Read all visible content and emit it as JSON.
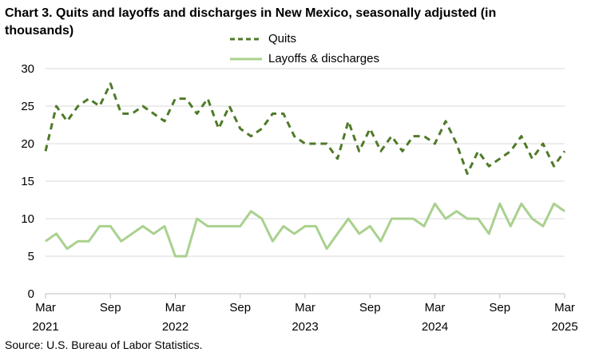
{
  "title": "Chart 3. Quits and layoffs and discharges in New Mexico, seasonally adjusted (in thousands)",
  "source": "Source: U.S. Bureau of Labor Statistics.",
  "colors": {
    "quits": "#4f7a28",
    "layoffs": "#a9d18e",
    "gridline": "#d9d9d9",
    "axis": "#000000"
  },
  "legend": [
    {
      "label": "Quits",
      "style": "dashed",
      "color": "#4f7a28"
    },
    {
      "label": "Layoffs & discharges",
      "style": "solid",
      "color": "#a9d18e"
    }
  ],
  "chart_data": {
    "type": "line",
    "title": "Chart 3. Quits and layoffs and discharges in New Mexico, seasonally adjusted (in thousands)",
    "xlabel": "",
    "ylabel": "",
    "ylim": [
      0,
      30
    ],
    "yticks": [
      0,
      5,
      10,
      15,
      20,
      25,
      30
    ],
    "grid": true,
    "legend_position": "top",
    "x_start": "2021-03",
    "x_end": "2025-03",
    "x_ticks": [
      {
        "month": "Mar",
        "year": "2021",
        "index": 0
      },
      {
        "month": "Sep",
        "year": "",
        "index": 6
      },
      {
        "month": "Mar",
        "year": "2022",
        "index": 12
      },
      {
        "month": "Sep",
        "year": "",
        "index": 18
      },
      {
        "month": "Mar",
        "year": "2023",
        "index": 24
      },
      {
        "month": "Sep",
        "year": "",
        "index": 30
      },
      {
        "month": "Mar",
        "year": "2024",
        "index": 36
      },
      {
        "month": "Sep",
        "year": "",
        "index": 42
      },
      {
        "month": "Mar",
        "year": "2025",
        "index": 48
      }
    ],
    "series": [
      {
        "name": "Quits",
        "style": "dashed",
        "values": [
          19,
          25,
          23,
          25,
          26,
          25,
          28,
          24,
          24,
          25,
          24,
          23,
          26,
          26,
          24,
          26,
          22,
          25,
          22,
          21,
          22,
          24,
          24,
          21,
          20,
          20,
          20,
          18,
          23,
          19,
          22,
          19,
          21,
          19,
          21,
          21,
          20,
          23,
          20,
          16,
          19,
          17,
          18,
          19,
          21,
          18,
          20,
          17,
          19
        ]
      },
      {
        "name": "Layoffs & discharges",
        "style": "solid",
        "values": [
          7,
          8,
          6,
          7,
          7,
          9,
          9,
          7,
          8,
          9,
          8,
          9,
          5,
          5,
          10,
          9,
          9,
          9,
          9,
          11,
          10,
          7,
          9,
          8,
          9,
          9,
          6,
          8,
          10,
          8,
          9,
          7,
          10,
          10,
          10,
          9,
          12,
          10,
          11,
          10,
          10,
          8,
          12,
          9,
          12,
          10,
          9,
          12,
          11
        ]
      }
    ]
  }
}
